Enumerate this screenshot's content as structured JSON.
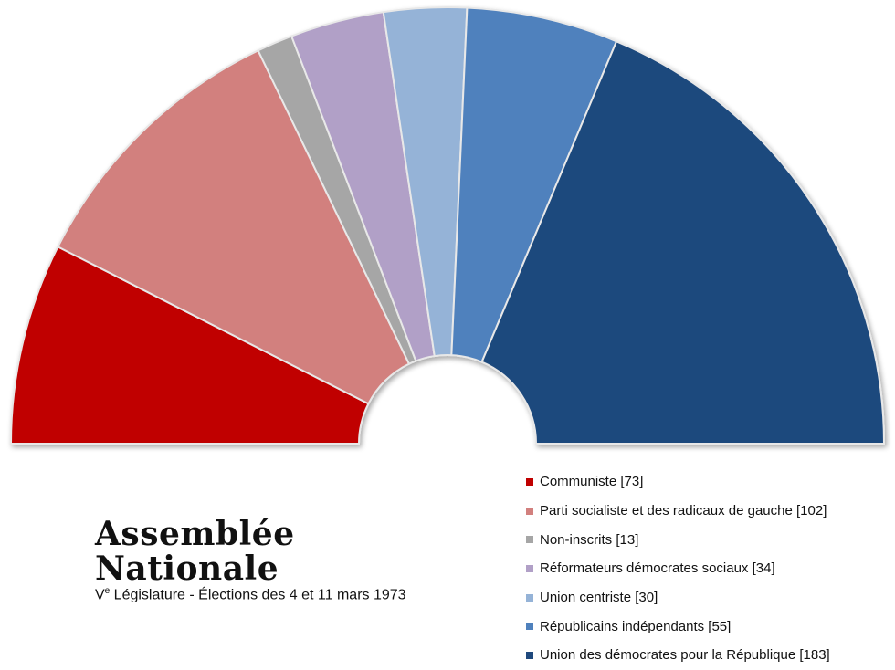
{
  "title": {
    "main": "Assemblée Nationale",
    "sub_numeral": "V",
    "sub_sup": "e",
    "sub_rest": " Législature - Élections des 4 et 11 mars 1973"
  },
  "chart_data": {
    "type": "pie",
    "shape": "semicircle",
    "legend_position": "bottom-right",
    "series": [
      {
        "name": "Communiste",
        "value": 73,
        "color": "#c00000",
        "label": "Communiste [73]"
      },
      {
        "name": "Parti socialiste et des radicaux de gauche",
        "value": 102,
        "color": "#d2807e",
        "label": "Parti socialiste et des radicaux de gauche [102]"
      },
      {
        "name": "Non-inscrits",
        "value": 13,
        "color": "#a6a6a6",
        "label": "Non-inscrits [13]"
      },
      {
        "name": "Réformateurs démocrates sociaux",
        "value": 34,
        "color": "#b1a0c7",
        "label": "Réformateurs démocrates sociaux [34]"
      },
      {
        "name": "Union centriste",
        "value": 30,
        "color": "#95b3d7",
        "label": "Union centriste [30]"
      },
      {
        "name": "Républicains indépendants",
        "value": 55,
        "color": "#4f81bd",
        "label": "Républicains indépendants [55]"
      },
      {
        "name": "Union des démocrates pour la République",
        "value": 183,
        "color": "#1f497d",
        "label": "Union des démocrates pour la République [183]"
      }
    ]
  }
}
